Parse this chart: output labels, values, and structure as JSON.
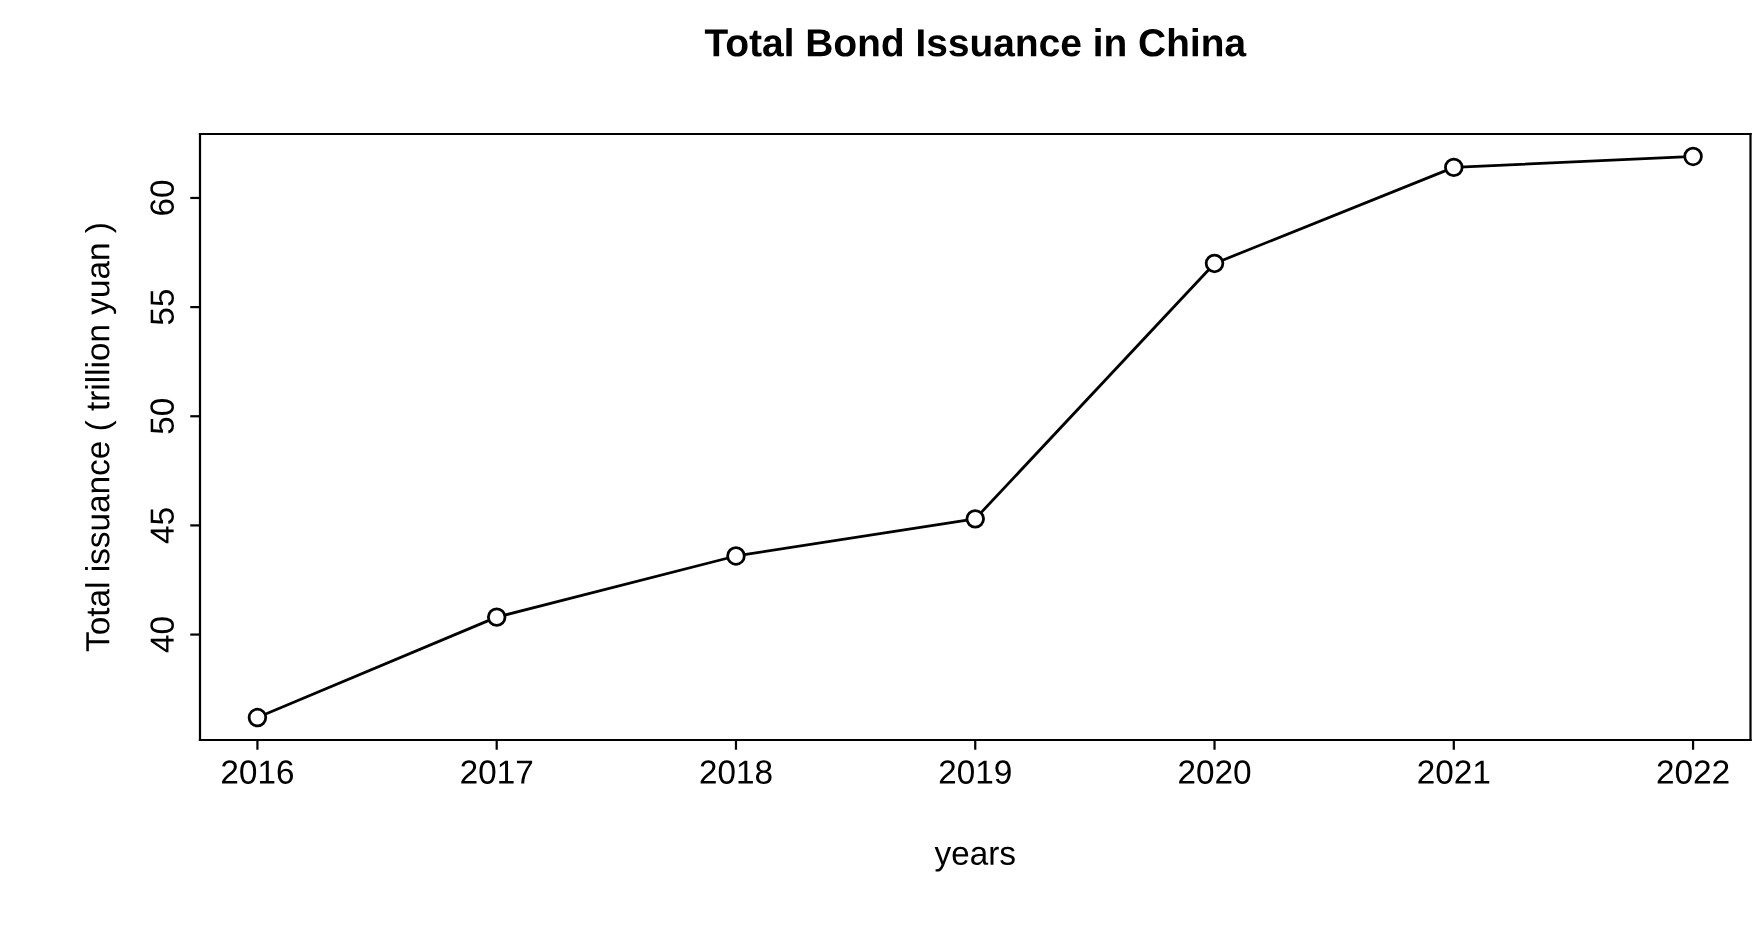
{
  "chart_data": {
    "type": "line",
    "title": "Total Bond Issuance in China",
    "xlabel": "years",
    "ylabel": "Total issuance ( trillion yuan )",
    "x": [
      2016,
      2017,
      2018,
      2019,
      2020,
      2021,
      2022
    ],
    "series": [
      {
        "color": "#000000",
        "values": [
          36.2,
          40.8,
          43.6,
          45.3,
          57.0,
          61.4,
          61.9
        ]
      }
    ],
    "xlim": [
      2015.76,
      2022.24
    ],
    "xticks": [
      2016,
      2017,
      2018,
      2019,
      2020,
      2021,
      2022
    ],
    "ylim": [
      35.17,
      62.93
    ],
    "yticks": [
      40,
      45,
      50,
      55,
      60
    ],
    "marker": "circle",
    "line_style": "solid",
    "grid": false,
    "legend": false
  }
}
